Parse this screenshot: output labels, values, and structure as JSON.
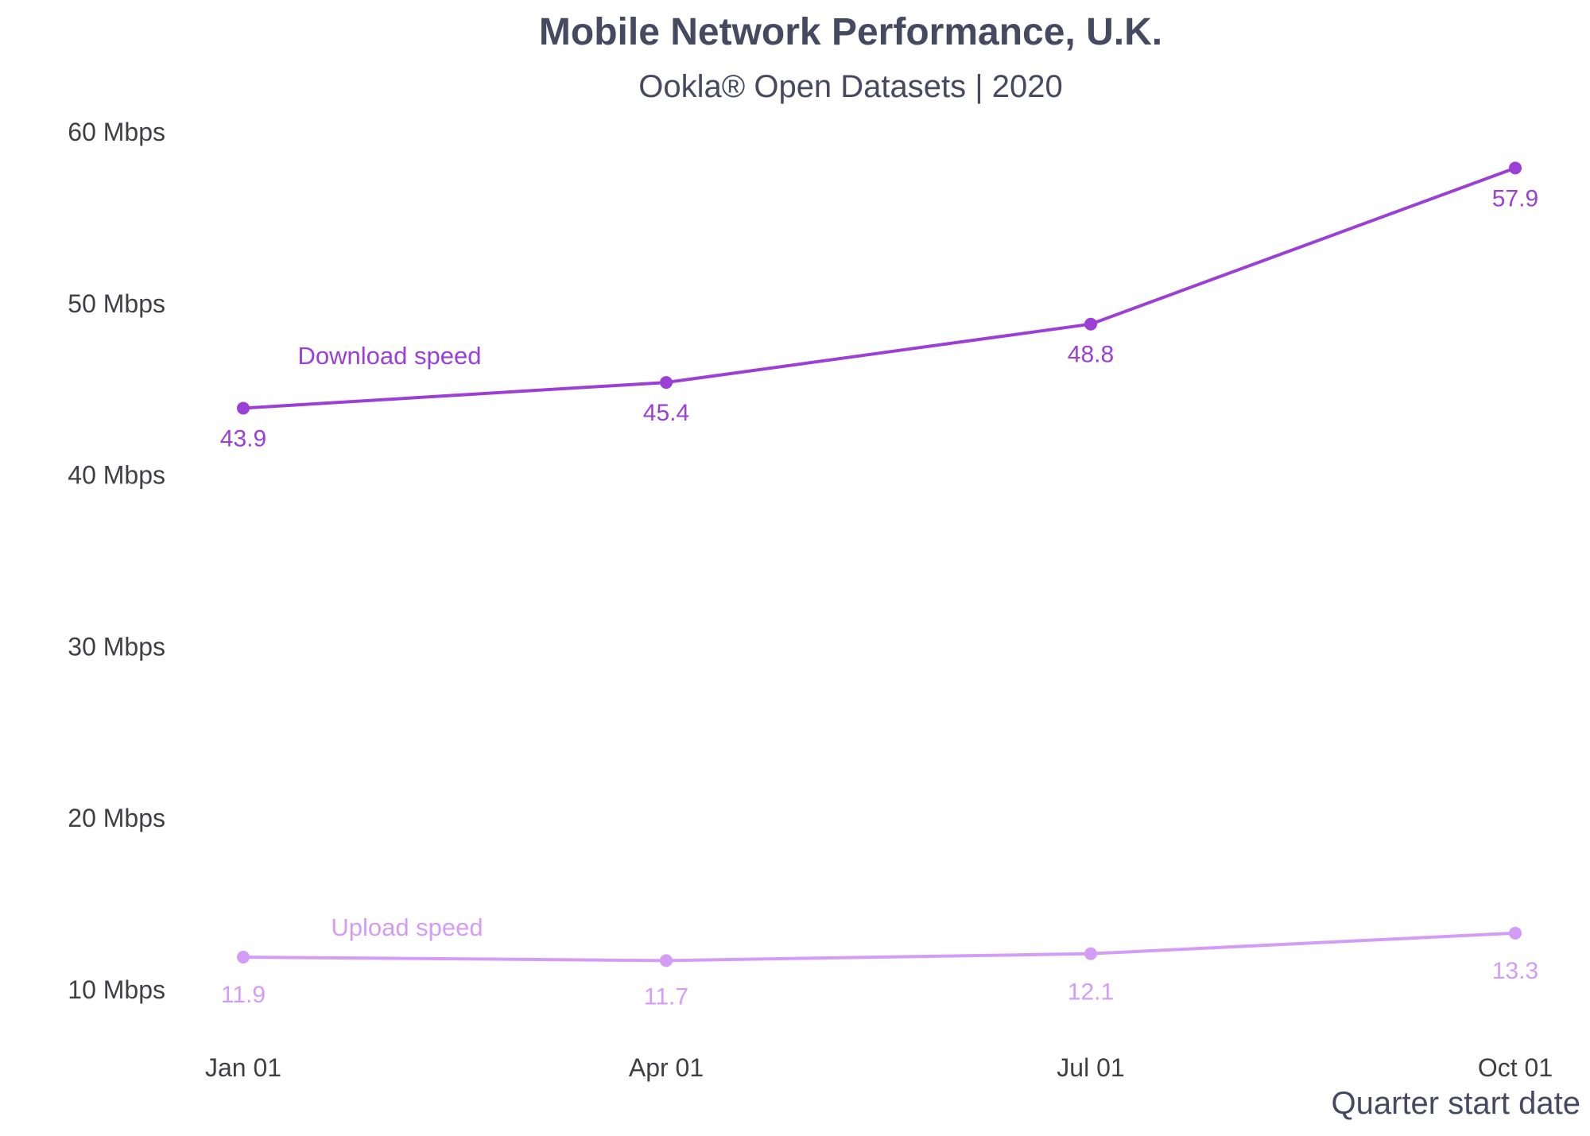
{
  "colors": {
    "text": "#454a61",
    "tick": "#3f3f46",
    "download": "#9b3fd6",
    "upload": "#d39df7"
  },
  "chart_data": {
    "type": "line",
    "title": "Mobile Network Performance, U.K.",
    "subtitle": "Ookla® Open Datasets | 2020",
    "xlabel": "Quarter start date",
    "ylabel": "",
    "categories": [
      "Jan 01",
      "Apr 01",
      "Jul 01",
      "Oct 01"
    ],
    "ylim": [
      8,
      62
    ],
    "yticks": [
      10,
      20,
      30,
      40,
      50,
      60
    ],
    "ytick_labels": [
      "10 Mbps",
      "20 Mbps",
      "30 Mbps",
      "40 Mbps",
      "50 Mbps",
      "60 Mbps"
    ],
    "grid": false,
    "legend": "inline labels",
    "series": [
      {
        "name": "Download speed",
        "key": "download",
        "values": [
          43.9,
          45.4,
          48.8,
          57.9
        ],
        "value_labels": [
          "43.9",
          "45.4",
          "48.8",
          "57.9"
        ]
      },
      {
        "name": "Upload speed",
        "key": "upload",
        "values": [
          11.9,
          11.7,
          12.1,
          13.3
        ],
        "value_labels": [
          "11.9",
          "11.7",
          "12.1",
          "13.3"
        ]
      }
    ]
  }
}
